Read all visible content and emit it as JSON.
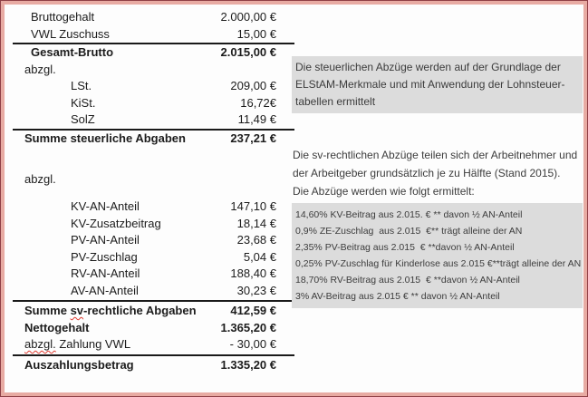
{
  "colors": {
    "note_bg": "#dcdcdc",
    "frame_outer": "#8f4046",
    "frame_inner": "#e8aba3",
    "rule": "#1a1a1a",
    "table_text": "#1c1c1c",
    "note_text": "#3c3c3c",
    "spellcheck": "#e03c31"
  },
  "table": {
    "rows": [
      {
        "label": "Bruttogehalt",
        "value": "2.000,00 €"
      },
      {
        "label": "VWL Zuschuss",
        "value": "15,00 €"
      },
      {
        "label": "Gesamt-Brutto",
        "value": "2.015,00 €"
      },
      {
        "label": "abzgl.",
        "value": ""
      },
      {
        "label": "LSt.",
        "value": "209,00 €"
      },
      {
        "label": "KiSt.",
        "value": "16,72€"
      },
      {
        "label": "SolZ",
        "value": "11,49 €"
      },
      {
        "label": "Summe steuerliche Abgaben",
        "value": "237,21 €"
      },
      {
        "label": "abzgl.",
        "value": ""
      },
      {
        "label": "KV-AN-Anteil",
        "value": "147,10 €"
      },
      {
        "label": "KV-Zusatzbeitrag",
        "value": "18,14 €"
      },
      {
        "label": "PV-AN-Anteil",
        "value": "23,68 €"
      },
      {
        "label": "PV-Zuschlag",
        "value": "5,04 €"
      },
      {
        "label": "RV-AN-Anteil",
        "value": "188,40 €"
      },
      {
        "label": "AV-AN-Anteil",
        "value": "30,23 €"
      },
      {
        "parts": [
          "Summe ",
          "sv",
          "-rechtliche Abgaben"
        ],
        "value": "412,59 €"
      },
      {
        "label": "Nettogehalt",
        "value": "1.365,20 €"
      },
      {
        "parts": [
          "",
          "abzgl.",
          " Zahlung VWL"
        ],
        "value": "- 30,00 €"
      },
      {
        "label": "Auszahlungsbetrag",
        "value": "1.335,20 €"
      }
    ]
  },
  "notes": {
    "tax": {
      "lines": [
        "Die steuerlichen Abzüge werden auf der Grundlage der",
        "ELStAM-Merkmale und mit Anwendung der Lohnsteuer-",
        "tabellen ermittelt"
      ]
    },
    "sv_intro": {
      "lines": [
        "Die sv-rechtlichen Abzüge teilen sich der Arbeitnehmer und",
        "der Arbeitgeber grundsätzlich je zu Hälfte (Stand 2015).",
        "Die Abzüge werden wie folgt ermittelt:"
      ]
    },
    "sv_rates": {
      "lines": [
        "14,60% KV-Beitrag aus 2.015. € ** davon ½ AN-Anteil",
        "0,9% ZE-Zuschlag  aus 2.015  €** trägt alleine der AN",
        "2,35% PV-Beitrag aus 2.015  € **davon ½ AN-Anteil",
        "0,25% PV-Zuschlag für Kinderlose aus 2.015 €**trägt alleine der AN",
        "18,70% RV-Beitrag aus 2.015  € **davon ½ AN-Anteil",
        "3% AV-Beitrag aus 2.015 € ** davon ½ AN-Anteil"
      ]
    }
  }
}
